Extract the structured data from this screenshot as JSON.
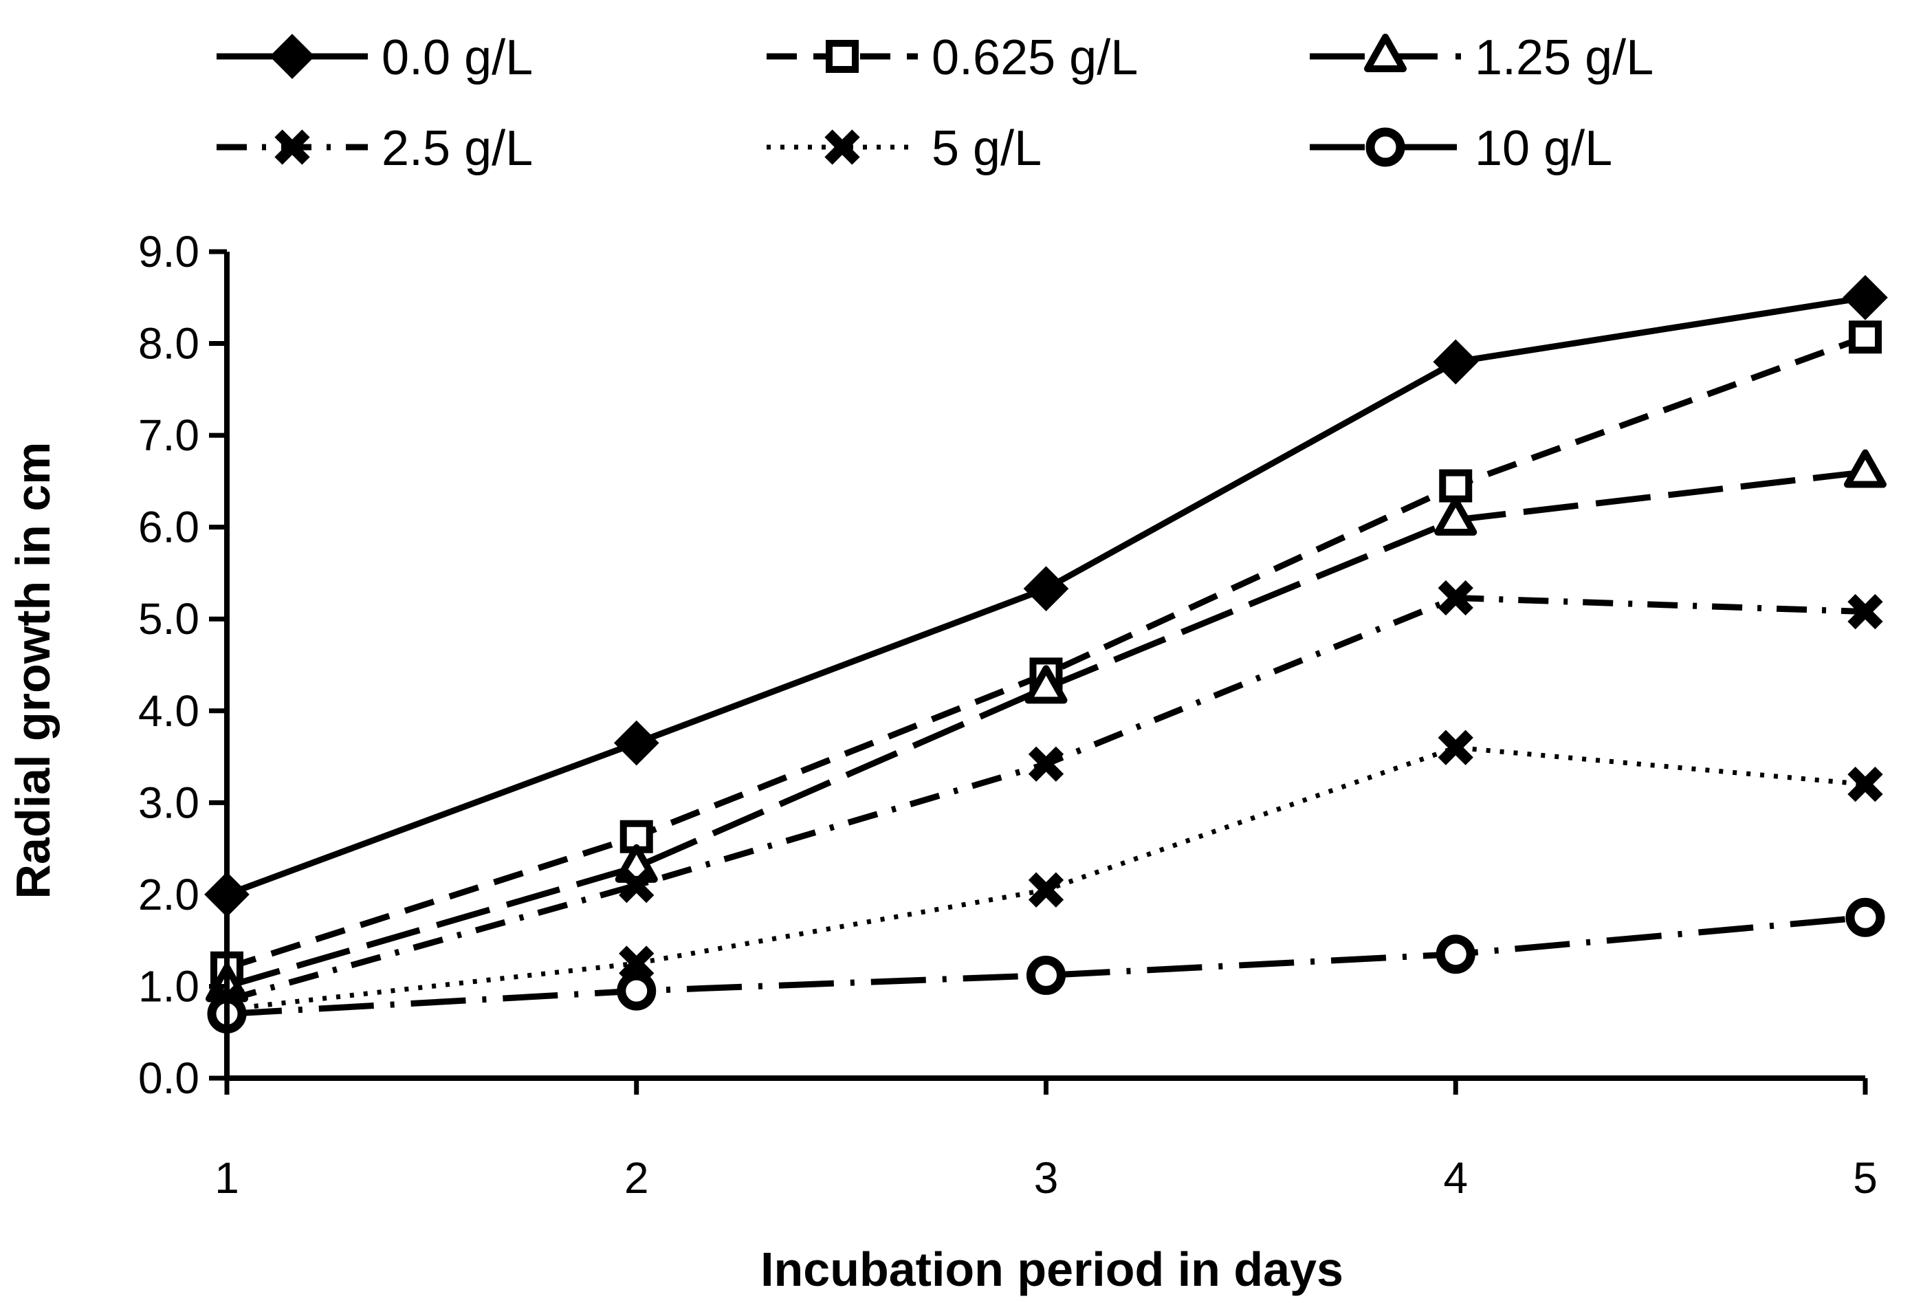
{
  "chart_data": {
    "type": "line",
    "xlabel": "Incubation period in days",
    "ylabel": "Radial growth in cm",
    "x": [
      1,
      2,
      3,
      4,
      5
    ],
    "ylim": [
      0,
      9
    ],
    "yticks": [
      "0.0",
      "1.0",
      "2.0",
      "3.0",
      "4.0",
      "5.0",
      "6.0",
      "7.0",
      "8.0",
      "9.0"
    ],
    "xticks": [
      "1",
      "2",
      "3",
      "4",
      "5"
    ],
    "grid": false,
    "legend_position": "top",
    "series": [
      {
        "name": "0.0 g/L",
        "values": [
          2.0,
          3.65,
          5.33,
          7.8,
          8.5
        ],
        "marker": "diamond",
        "dash": "solid"
      },
      {
        "name": "0.625 g/L",
        "values": [
          1.2,
          2.63,
          4.4,
          6.45,
          8.07
        ],
        "marker": "square-open",
        "dash": "dash"
      },
      {
        "name": "1.25 g/L",
        "values": [
          1.0,
          2.3,
          4.25,
          6.08,
          6.6
        ],
        "marker": "triangle",
        "dash": "longdash"
      },
      {
        "name": "2.5 g/L",
        "values": [
          0.85,
          2.1,
          3.42,
          5.23,
          5.08
        ],
        "marker": "x",
        "dash": "dashdot"
      },
      {
        "name": "5 g/L",
        "values": [
          0.75,
          1.25,
          2.05,
          3.6,
          3.2
        ],
        "marker": "x",
        "dash": "dot"
      },
      {
        "name": "10 g/L",
        "values": [
          0.7,
          0.95,
          1.12,
          1.35,
          1.75
        ],
        "marker": "circle-open",
        "dash": "longdashdot"
      }
    ]
  }
}
